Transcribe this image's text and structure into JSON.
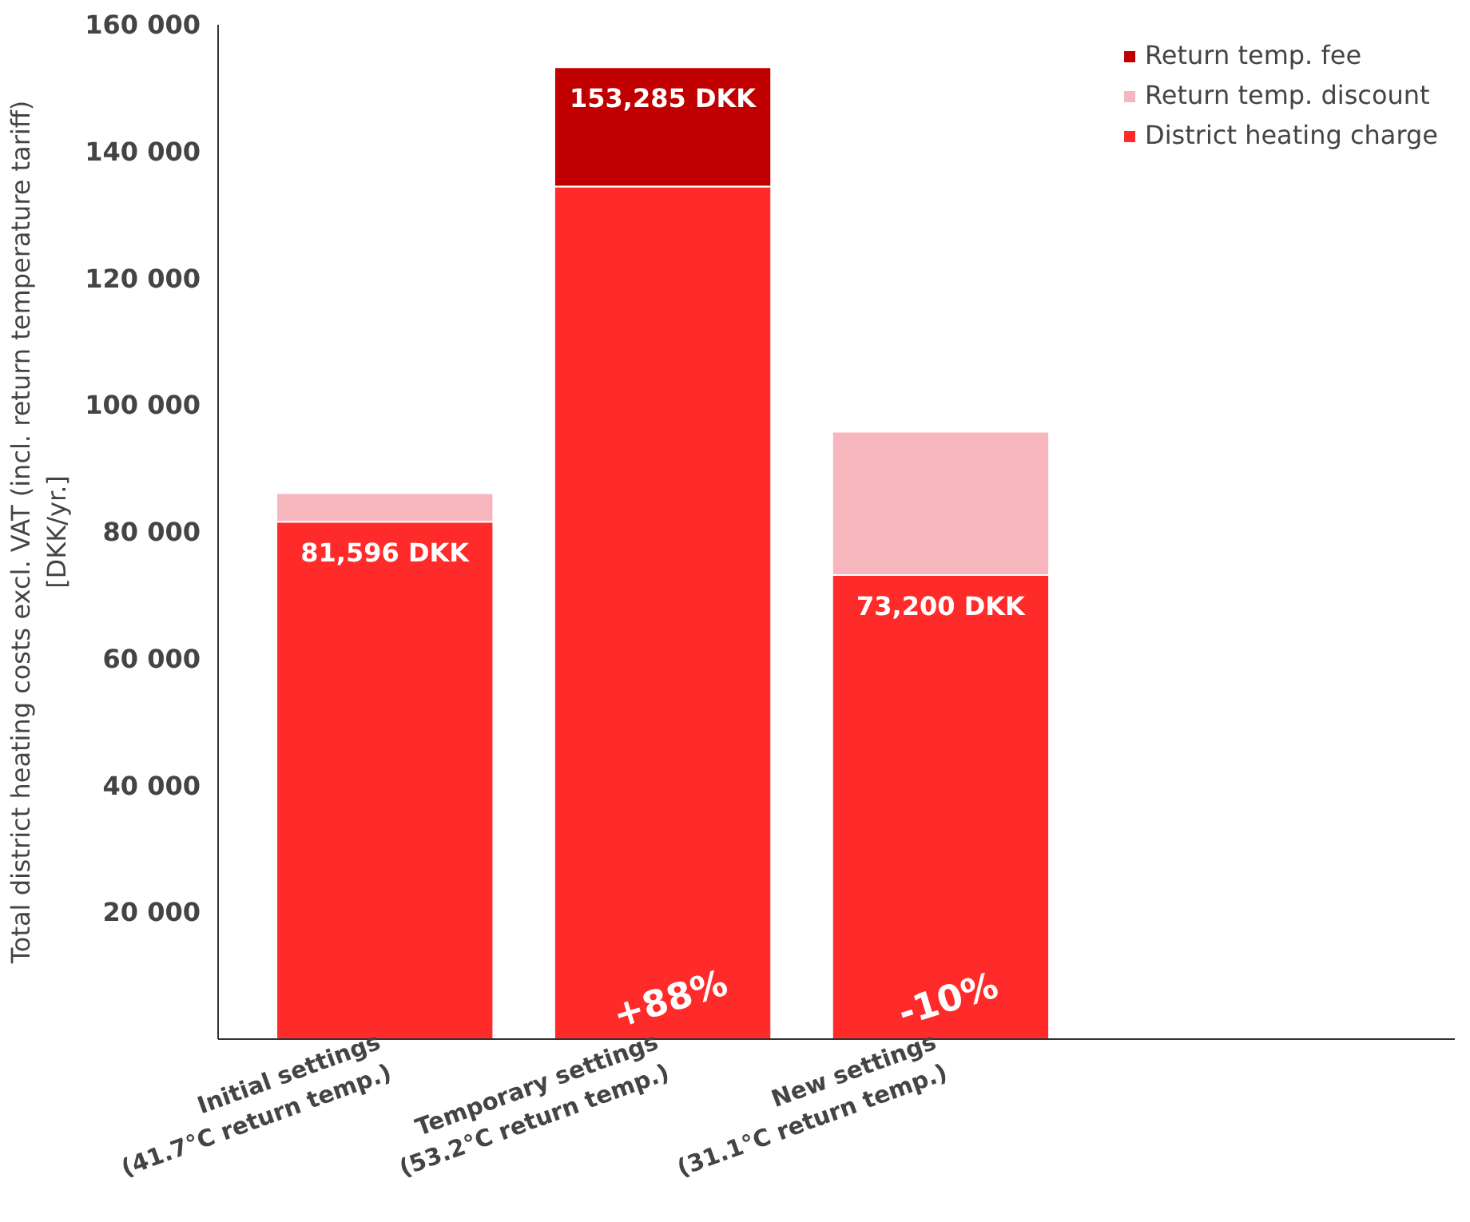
{
  "chart_data": {
    "type": "bar",
    "stacked": true,
    "categories": [
      "Initial settings\n(41.7°C return temp.)",
      "Temporary settings\n(53.2°C return temp.)",
      "New settings\n(31.1°C return temp.)"
    ],
    "ylabel": "Total district heating costs excl. VAT (incl. return temperature tariff)\n[DKK/yr.]",
    "ylim": [
      0,
      160000
    ],
    "yticks": [
      {
        "value": 20000,
        "label": "20 000"
      },
      {
        "value": 40000,
        "label": "40 000"
      },
      {
        "value": 60000,
        "label": "60 000"
      },
      {
        "value": 80000,
        "label": "80 000"
      },
      {
        "value": 100000,
        "label": "100 000"
      },
      {
        "value": 120000,
        "label": "120 000"
      },
      {
        "value": 140000,
        "label": "140 000"
      },
      {
        "value": 160000,
        "label": "160 000"
      }
    ],
    "series": [
      {
        "name": "District heating charge",
        "color": "#ff2a2a",
        "values": [
          81596,
          134500,
          73200
        ],
        "value_labels": [
          "81,596 DKK",
          null,
          "73,200 DKK"
        ]
      },
      {
        "name": "Return temp. discount",
        "color": "#f7b6bd",
        "values": [
          4500,
          null,
          22600
        ]
      },
      {
        "name": "Return temp. fee",
        "color": "#c00000",
        "values": [
          null,
          18785,
          null
        ]
      }
    ],
    "totals": [
      null,
      "153,285 DKK",
      null
    ],
    "annotations": [
      "+88%",
      "-10%"
    ],
    "grid": false,
    "legend": "top right"
  }
}
